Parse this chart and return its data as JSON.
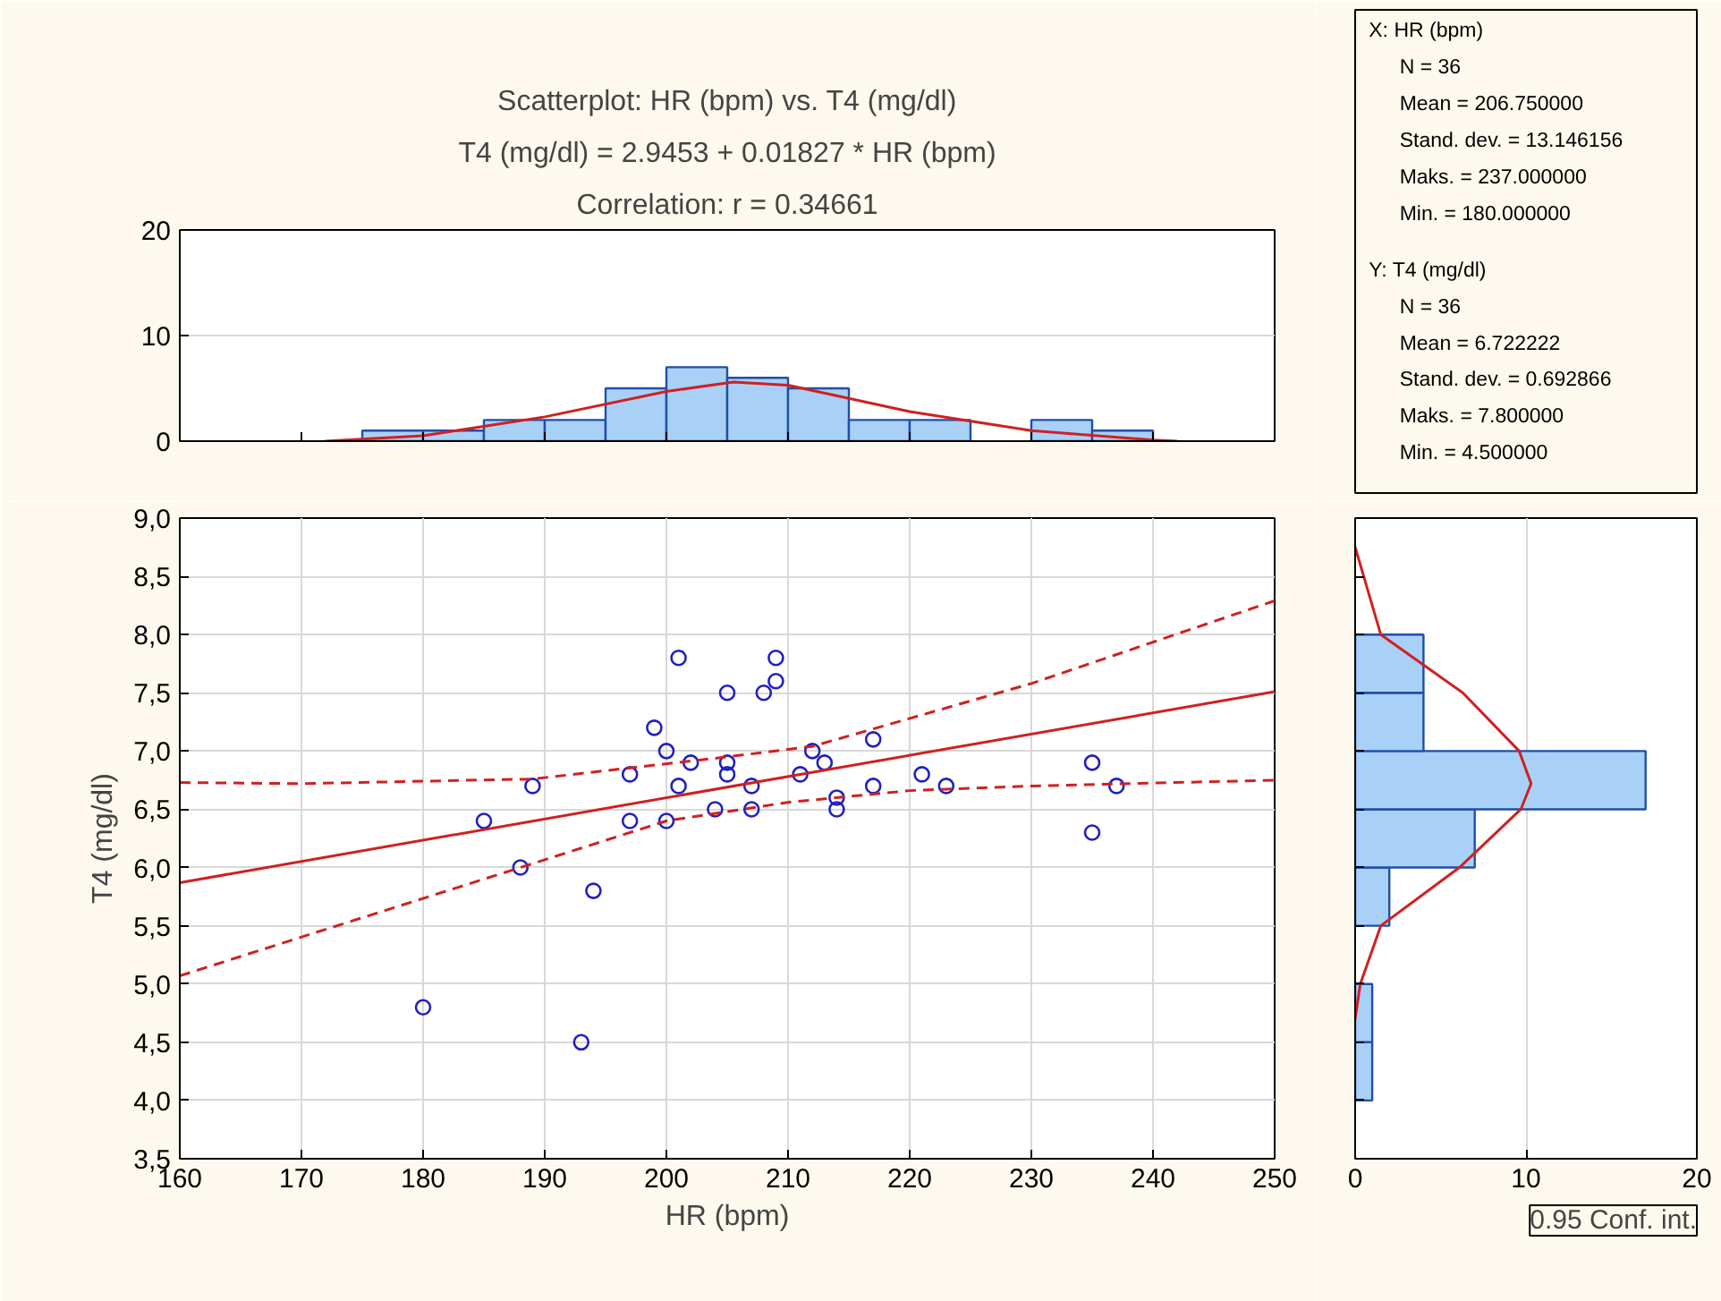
{
  "chart_data": [
    {
      "type": "histogram",
      "title": "Scatterplot: HR (bpm) vs. T4 (mg/dl)",
      "subtitle": "T4 (mg/dl) = 2.9453 + 0.01827 * HR (bpm)",
      "annotations": [
        "Correlation: r = 0.34661"
      ],
      "bins": [
        175,
        180,
        185,
        190,
        195,
        200,
        205,
        210,
        215,
        220,
        225,
        230,
        235,
        240
      ],
      "values": [
        1,
        1,
        2,
        2,
        5,
        7,
        6,
        5,
        2,
        2,
        0,
        2,
        1
      ],
      "color": "#a9d1f7",
      "xlim": [
        160,
        250
      ],
      "xticks": [
        {
          "value": 170,
          "label": null
        },
        {
          "value": 180,
          "label": null
        },
        {
          "value": 190,
          "label": null
        },
        {
          "value": 200,
          "label": null
        },
        {
          "value": 210,
          "label": null
        },
        {
          "value": 220,
          "label": null
        },
        {
          "value": 230,
          "label": null
        },
        {
          "value": 240,
          "label": null
        }
      ],
      "ylim": [
        0,
        20
      ],
      "yticks": [
        0,
        10,
        20
      ],
      "tick_labels": "y",
      "grid": "y",
      "series": [
        {
          "type": "line",
          "color": "#d02020",
          "x": [
            172,
            180,
            190,
            200,
            205.5,
            210,
            220,
            230,
            240,
            242
          ],
          "values": [
            0,
            0.5,
            2.3,
            4.7,
            5.6,
            5.3,
            2.8,
            1.0,
            0.1,
            0
          ]
        }
      ]
    },
    {
      "type": "other",
      "annotations": [
        "X:  HR (bpm)",
        "N = 36",
        "Mean = 206.750000",
        "Stand. dev. = 13.146156",
        "Maks. = 237.000000",
        "Min. = 180.000000",
        "Y:  T4 (mg/dl)",
        "N = 36",
        "Mean = 6.722222",
        "Stand. dev. = 0.692866",
        "Maks. = 7.800000",
        "Min. = 4.500000"
      ]
    },
    {
      "type": "scatter",
      "xlabel": "HR (bpm)",
      "ylabel": "T4 (mg/dl)",
      "xlim": [
        160,
        250
      ],
      "xticks": [
        160,
        170,
        180,
        190,
        200,
        210,
        220,
        230,
        240,
        250
      ],
      "ylim": [
        3.5,
        9.0
      ],
      "yticks": [
        {
          "value": 3.5,
          "label": "3,5"
        },
        {
          "value": 4.0,
          "label": "4,0"
        },
        {
          "value": 4.5,
          "label": "4,5"
        },
        {
          "value": 5.0,
          "label": "5,0"
        },
        {
          "value": 5.5,
          "label": "5,5"
        },
        {
          "value": 6.0,
          "label": "6,0"
        },
        {
          "value": 6.5,
          "label": "6,5"
        },
        {
          "value": 7.0,
          "label": "7,0"
        },
        {
          "value": 7.5,
          "label": "7,5"
        },
        {
          "value": 8.0,
          "label": "8,0"
        },
        {
          "value": 8.5,
          "label": "8,5"
        },
        {
          "value": 9.0,
          "label": "9,0"
        }
      ],
      "grid": true,
      "series": [
        {
          "type": "scatter",
          "marker": "circle",
          "color": "#2020c0",
          "x": [
            201,
            209,
            209,
            208,
            205,
            199,
            200,
            202,
            205,
            205,
            197,
            189,
            201,
            207,
            212,
            211,
            185,
            197,
            200,
            204,
            207,
            188,
            194,
            180,
            193,
            213,
            214,
            214,
            217,
            217,
            221,
            223,
            235,
            235,
            237
          ],
          "values": [
            7.8,
            7.8,
            7.6,
            7.5,
            7.5,
            7.2,
            7.0,
            6.9,
            6.9,
            6.8,
            6.8,
            6.7,
            6.7,
            6.7,
            7.0,
            6.8,
            6.4,
            6.4,
            6.4,
            6.5,
            6.5,
            6.0,
            5.8,
            4.8,
            4.5,
            6.9,
            6.6,
            6.5,
            7.1,
            6.7,
            6.8,
            6.7,
            6.9,
            6.3,
            6.7
          ]
        },
        {
          "type": "line",
          "line_style": "solid",
          "color": "#d02020",
          "x": [
            160,
            250
          ],
          "values": [
            5.87,
            7.51
          ]
        },
        {
          "type": "line",
          "line_style": "dashed",
          "color": "#d02020",
          "x": [
            160,
            170,
            189,
            205,
            212,
            230,
            250
          ],
          "values": [
            6.73,
            6.72,
            6.76,
            6.95,
            7.04,
            7.58,
            8.29
          ]
        },
        {
          "type": "line",
          "line_style": "dashed",
          "color": "#d02020",
          "x": [
            160,
            169,
            188,
            200,
            210,
            220,
            230,
            250
          ],
          "values": [
            5.07,
            5.37,
            6.0,
            6.4,
            6.56,
            6.66,
            6.7,
            6.75
          ]
        }
      ]
    },
    {
      "type": "histogram",
      "orientation": "horizontal",
      "annotations": [
        "0.95 Conf. int."
      ],
      "bins": [
        4.0,
        4.5,
        5.0,
        5.5,
        6.0,
        6.5,
        7.0,
        7.5,
        8.0
      ],
      "values": [
        1,
        1,
        0,
        2,
        7,
        17,
        4,
        4
      ],
      "color": "#a9d1f7",
      "xlim": [
        0,
        20
      ],
      "xticks": [
        0,
        10,
        20
      ],
      "ylim": [
        3.5,
        9.0
      ],
      "yticks": [
        {
          "value": 4.0,
          "label": null
        },
        {
          "value": 4.5,
          "label": null
        },
        {
          "value": 5.0,
          "label": null
        },
        {
          "value": 5.5,
          "label": null
        },
        {
          "value": 6.0,
          "label": null
        },
        {
          "value": 6.5,
          "label": null
        },
        {
          "value": 7.0,
          "label": null
        },
        {
          "value": 7.5,
          "label": null
        },
        {
          "value": 8.0,
          "label": null
        },
        {
          "value": 8.5,
          "label": null
        }
      ],
      "tick_labels": "x",
      "grid": "x",
      "series": [
        {
          "type": "line",
          "color": "#d02020",
          "x": [
            8.75,
            8.0,
            7.5,
            7.0,
            6.72,
            6.5,
            6.0,
            5.5,
            5.0,
            4.7
          ],
          "values": [
            0,
            1.5,
            6.3,
            9.6,
            10.3,
            9.7,
            6.1,
            1.5,
            0.3,
            0
          ]
        }
      ]
    }
  ]
}
